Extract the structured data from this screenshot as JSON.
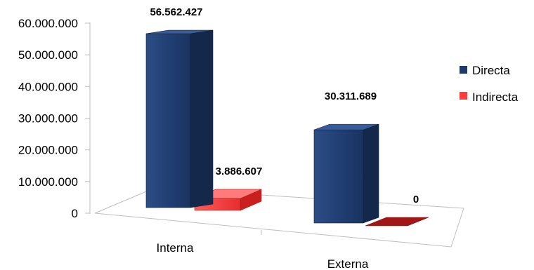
{
  "chart_data": {
    "type": "bar",
    "style": "3d-clustered",
    "categories": [
      "Interna",
      "Externa"
    ],
    "series": [
      {
        "name": "Directa",
        "values": [
          56562427,
          30311689
        ],
        "color": "#1f3a68"
      },
      {
        "name": "Indirecta",
        "values": [
          3886607,
          0
        ],
        "color": "#ff3b3b"
      }
    ],
    "data_labels": {
      "Directa": [
        "56.562.427",
        "30.311.689"
      ],
      "Indirecta": [
        "3.886.607",
        "0"
      ]
    },
    "ylim": [
      0,
      60000000
    ],
    "yticks": [
      "0",
      "10.000.000",
      "20.000.000",
      "30.000.000",
      "40.000.000",
      "50.000.000",
      "60.000.000"
    ],
    "grid": false,
    "legend_position": "right"
  }
}
